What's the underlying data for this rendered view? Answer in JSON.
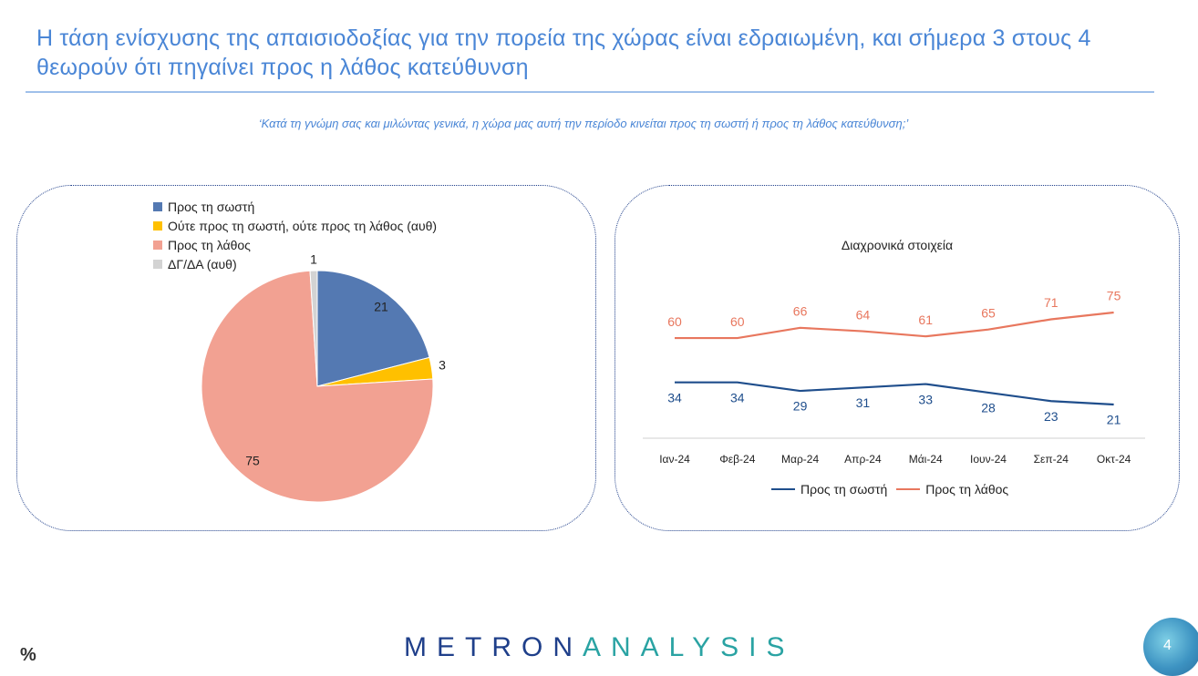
{
  "title": "Η τάση ενίσχυσης της απαισιοδοξίας για την πορεία της χώρας είναι εδραιωμένη, και σήμερα 3 στους 4 θεωρούν ότι πηγαίνει προς η λάθος κατεύθυνση",
  "subtitle": "‘Κατά τη γνώμη σας και μιλώντας γενικά, η χώρα μας αυτή την περίοδο κινείται προς τη σωστή ή προς τη λάθος κατεύθυνση;’",
  "footer": {
    "percent_sign": "%",
    "logo_part1": "METRON",
    "logo_part2": "ANALYSIS",
    "page_number": "4"
  },
  "colors": {
    "right": "#5479b2",
    "neither": "#ffc000",
    "wrong": "#f2a192",
    "dk": "#d3d3d3",
    "line_right": "#1f4e8c",
    "line_wrong": "#e8775e"
  },
  "chart_data": [
    {
      "type": "pie",
      "title": "",
      "slices": [
        {
          "label": "Προς τη σωστή",
          "value": 21,
          "color": "#5479b2"
        },
        {
          "label": "Ούτε προς τη σωστή, ούτε προς τη λάθος (αυθ)",
          "value": 3,
          "color": "#ffc000"
        },
        {
          "label": "Προς τη λάθος",
          "value": 75,
          "color": "#f2a192"
        },
        {
          "label": "ΔΓ/ΔΑ (αυθ)",
          "value": 1,
          "color": "#d3d3d3"
        }
      ],
      "legend": "top-left"
    },
    {
      "type": "line",
      "title": "Διαχρονικά στοιχεία",
      "categories": [
        "Ιαν-24",
        "Φεβ-24",
        "Μαρ-24",
        "Απρ-24",
        "Μάι-24",
        "Ιουν-24",
        "Σεπ-24",
        "Οκτ-24"
      ],
      "series": [
        {
          "name": "Προς τη σωστή",
          "values": [
            34,
            34,
            29,
            31,
            33,
            28,
            23,
            21
          ],
          "color": "#1f4e8c"
        },
        {
          "name": "Προς τη λάθος",
          "values": [
            60,
            60,
            66,
            64,
            61,
            65,
            71,
            75
          ],
          "color": "#e8775e"
        }
      ],
      "ylim": [
        0,
        100
      ],
      "legend": "bottom"
    }
  ]
}
